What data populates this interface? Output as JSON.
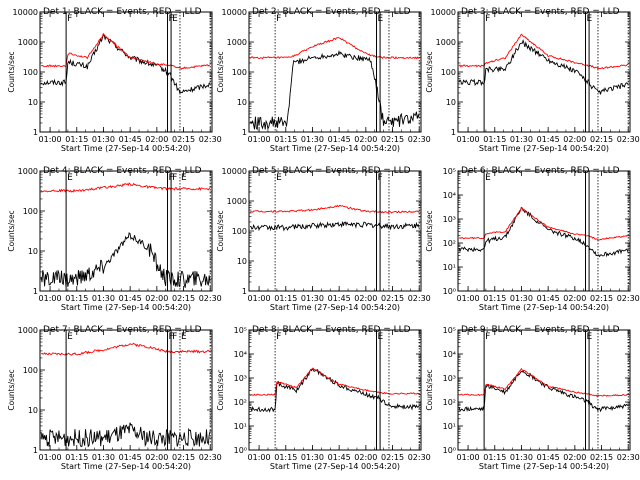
{
  "figure": {
    "x_ticks": [
      "01:00",
      "01:15",
      "01:30",
      "01:45",
      "02:00",
      "02:15",
      "02:30"
    ],
    "xlabel": "Start Time (27-Sep-14 00:54:20)",
    "ylabel": "Counts/sec",
    "series_colors": {
      "events": "#000000",
      "lld": "#ff0000"
    },
    "marker_colors": {
      "line": "#000000",
      "dotted": "#000000"
    }
  },
  "chart_data": [
    {
      "type": "line",
      "title": "Det 1: BLACK = Events, RED = LLD",
      "yscale": "log",
      "ylim": [
        1,
        10000
      ],
      "x": [
        "00:55",
        "01:09",
        "01:10",
        "01:21",
        "01:30",
        "01:45",
        "02:01",
        "02:07",
        "02:13",
        "02:30"
      ],
      "series": [
        {
          "values": [
            45,
            45,
            220,
            150,
            1600,
            300,
            150,
            90,
            20,
            40
          ]
        },
        {
          "values": [
            160,
            160,
            420,
            300,
            1800,
            300,
            180,
            170,
            130,
            170
          ]
        }
      ],
      "markers": {
        "solid": [
          "01:09",
          "02:06",
          "02:08"
        ],
        "dashed": [
          "02:13",
          "02:30"
        ],
        "labels": [
          "F",
          "F",
          "E"
        ]
      }
    },
    {
      "type": "line",
      "title": "Det 2: BLACK = Events, RED = LLD",
      "yscale": "log",
      "ylim": [
        1,
        10000
      ],
      "x": [
        "00:55",
        "01:10",
        "01:16",
        "01:19",
        "01:30",
        "01:45",
        "01:55",
        "02:03",
        "02:10",
        "02:30"
      ],
      "series": [
        {
          "values": [
            2,
            2,
            2,
            200,
            300,
            400,
            300,
            250,
            2,
            3
          ]
        },
        {
          "values": [
            300,
            300,
            300,
            330,
            700,
            1400,
            600,
            350,
            300,
            300
          ]
        }
      ],
      "markers": {
        "solid": [
          "02:06",
          "02:08"
        ],
        "dashed": [
          "01:09",
          "02:13",
          "02:30"
        ],
        "labels": [
          "F",
          "E"
        ]
      }
    },
    {
      "type": "line",
      "title": "Det 3: BLACK = Events, RED = LLD",
      "yscale": "log",
      "ylim": [
        1,
        10000
      ],
      "x": [
        "00:55",
        "01:09",
        "01:10",
        "01:21",
        "01:30",
        "01:45",
        "02:01",
        "02:07",
        "02:13",
        "02:30"
      ],
      "series": [
        {
          "values": [
            45,
            45,
            120,
            130,
            1000,
            250,
            100,
            50,
            20,
            40
          ]
        },
        {
          "values": [
            160,
            160,
            200,
            300,
            1800,
            350,
            200,
            170,
            130,
            170
          ]
        }
      ],
      "markers": {
        "solid": [
          "01:09",
          "02:06",
          "02:08"
        ],
        "dashed": [
          "02:13",
          "02:30"
        ],
        "labels": [
          "F",
          "E"
        ]
      }
    },
    {
      "type": "line",
      "title": "Det 4: BLACK = Events, RED = LLD",
      "yscale": "log",
      "ylim": [
        1,
        1000
      ],
      "x": [
        "00:55",
        "01:15",
        "01:30",
        "01:45",
        "01:55",
        "02:05",
        "02:30"
      ],
      "series": [
        {
          "values": [
            2,
            2,
            4,
            25,
            12,
            2,
            2
          ]
        },
        {
          "values": [
            320,
            320,
            380,
            470,
            400,
            360,
            360
          ]
        }
      ],
      "markers": {
        "solid": [
          "01:09",
          "02:06",
          "02:08"
        ],
        "dashed": [
          "02:13",
          "02:30"
        ],
        "labels": [
          "E",
          "F",
          "F",
          "E"
        ]
      }
    },
    {
      "type": "line",
      "title": "Det 5: BLACK = Events, RED = LLD",
      "yscale": "log",
      "ylim": [
        1,
        10000
      ],
      "x": [
        "00:55",
        "01:15",
        "01:30",
        "01:45",
        "02:00",
        "02:15",
        "02:30"
      ],
      "series": [
        {
          "values": [
            130,
            130,
            150,
            170,
            160,
            140,
            150
          ]
        },
        {
          "values": [
            450,
            450,
            500,
            700,
            450,
            420,
            460
          ]
        }
      ],
      "markers": {
        "solid": [
          "02:06",
          "02:08"
        ],
        "dashed": [
          "01:09",
          "02:13",
          "02:30"
        ],
        "labels": [
          "E",
          "F"
        ]
      }
    },
    {
      "type": "line",
      "title": "Det 6: BLACK = Events, RED = LLD",
      "yscale": "log",
      "ylim": [
        1,
        100000
      ],
      "x": [
        "00:55",
        "01:09",
        "01:10",
        "01:21",
        "01:30",
        "01:45",
        "02:01",
        "02:07",
        "02:13",
        "02:30"
      ],
      "series": [
        {
          "values": [
            55,
            55,
            120,
            180,
            2800,
            350,
            150,
            80,
            30,
            50
          ]
        },
        {
          "values": [
            160,
            160,
            250,
            300,
            2800,
            450,
            230,
            200,
            140,
            200
          ]
        }
      ],
      "markers": {
        "solid": [
          "01:09",
          "02:06",
          "02:08"
        ],
        "dashed": [
          "02:13",
          "02:30"
        ],
        "labels": [
          "E"
        ]
      }
    },
    {
      "type": "line",
      "title": "Det 7: BLACK = Events, RED = LLD",
      "yscale": "log",
      "ylim": [
        1,
        1000
      ],
      "x": [
        "00:55",
        "01:15",
        "01:30",
        "01:45",
        "01:55",
        "02:05",
        "02:30"
      ],
      "series": [
        {
          "values": [
            2,
            2,
            2,
            3,
            2,
            2,
            2
          ]
        },
        {
          "values": [
            250,
            250,
            320,
            450,
            380,
            290,
            290
          ]
        }
      ],
      "markers": {
        "solid": [
          "01:09",
          "02:06",
          "02:08"
        ],
        "dashed": [
          "02:13",
          "02:30"
        ],
        "labels": [
          "E",
          "F",
          "F",
          "E"
        ]
      }
    },
    {
      "type": "line",
      "title": "Det 8: BLACK = Events, RED = LLD",
      "yscale": "log",
      "ylim": [
        1,
        100000
      ],
      "x": [
        "00:55",
        "01:09",
        "01:10",
        "01:21",
        "01:30",
        "01:45",
        "02:01",
        "02:07",
        "02:13",
        "02:30"
      ],
      "series": [
        {
          "values": [
            50,
            50,
            600,
            300,
            2500,
            500,
            200,
            150,
            70,
            60
          ]
        },
        {
          "values": [
            200,
            200,
            700,
            400,
            2600,
            550,
            300,
            250,
            220,
            230
          ]
        }
      ],
      "markers": {
        "solid": [
          "02:06",
          "02:08"
        ],
        "dashed": [
          "01:09",
          "02:13",
          "02:30"
        ],
        "labels": [
          "F",
          "E"
        ]
      }
    },
    {
      "type": "line",
      "title": "Det 9: BLACK = Events, RED = LLD",
      "yscale": "log",
      "ylim": [
        1,
        100000
      ],
      "x": [
        "00:55",
        "01:09",
        "01:10",
        "01:21",
        "01:30",
        "01:45",
        "02:01",
        "02:07",
        "02:13",
        "02:30"
      ],
      "series": [
        {
          "values": [
            50,
            50,
            500,
            250,
            2200,
            400,
            150,
            100,
            50,
            70
          ]
        },
        {
          "values": [
            200,
            200,
            550,
            350,
            2400,
            450,
            250,
            220,
            180,
            200
          ]
        }
      ],
      "markers": {
        "solid": [
          "01:09",
          "02:06",
          "02:08"
        ],
        "dashed": [
          "02:13",
          "02:30"
        ],
        "labels": [
          "F",
          "E"
        ]
      }
    }
  ]
}
